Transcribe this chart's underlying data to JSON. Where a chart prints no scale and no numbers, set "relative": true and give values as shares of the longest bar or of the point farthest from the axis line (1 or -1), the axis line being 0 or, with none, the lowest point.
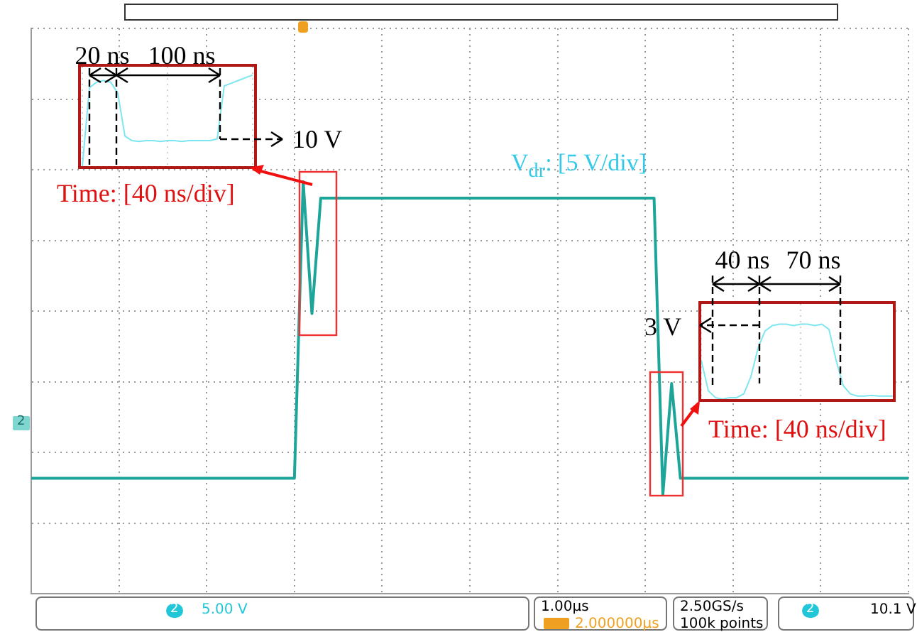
{
  "chart_data": [
    {
      "type": "line",
      "relative": true,
      "grid": true,
      "categories": [
        null,
        null,
        null,
        null,
        null,
        null,
        null,
        null,
        null,
        null,
        null,
        null,
        null,
        null,
        null,
        null,
        null,
        null,
        null,
        null,
        null,
        null,
        null,
        null,
        null,
        null,
        null,
        null,
        null,
        null,
        null,
        null,
        null,
        null,
        null,
        null,
        null,
        null,
        null,
        null,
        null,
        null,
        null,
        null,
        null,
        null,
        null,
        null,
        null,
        null,
        null,
        null,
        null,
        null,
        null,
        null,
        null,
        null,
        null,
        null,
        null,
        null,
        null,
        null,
        null,
        null,
        null,
        null,
        null,
        null,
        null,
        null,
        null,
        null,
        null,
        null,
        null,
        null,
        null,
        null,
        null,
        null,
        null,
        null,
        null,
        null,
        null,
        null,
        null,
        null,
        null,
        null,
        null,
        null,
        null,
        null,
        null,
        null,
        null,
        null,
        null
      ],
      "series": [
        {
          "color": "#1ea59a",
          "values": [
            0.28,
            0.28,
            0.28,
            0.28,
            0.28,
            0.28,
            0.28,
            0.28,
            0.28,
            0.28,
            0.28,
            0.28,
            0.28,
            0.28,
            0.28,
            0.28,
            0.28,
            0.28,
            0.28,
            0.28,
            0.28,
            0.28,
            0.28,
            0.28,
            0.28,
            0.28,
            0.28,
            0.28,
            0.28,
            0.28,
            0.28,
            1,
            0.68,
            0.96,
            0.96,
            0.96,
            0.96,
            0.96,
            0.96,
            0.96,
            0.96,
            0.96,
            0.96,
            0.96,
            0.96,
            0.96,
            0.96,
            0.96,
            0.96,
            0.96,
            0.96,
            0.96,
            0.96,
            0.96,
            0.96,
            0.96,
            0.96,
            0.96,
            0.96,
            0.96,
            0.96,
            0.96,
            0.96,
            0.96,
            0.96,
            0.96,
            0.96,
            0.96,
            0.96,
            0.96,
            0.96,
            0.96,
            0.24,
            0.51,
            0.28,
            0.28,
            0.28,
            0.28,
            0.28,
            0.28,
            0.28,
            0.28,
            0.28,
            0.28,
            0.28,
            0.28,
            0.28,
            0.28,
            0.28,
            0.28,
            0.28,
            0.28,
            0.28,
            0.28,
            0.28,
            0.28,
            0.28,
            0.28,
            0.28,
            0.28,
            0.28
          ]
        }
      ],
      "annotations": [
        "V$_{dr}$: [5 V/div]",
        "2",
        "2",
        "5.00 V",
        "1.00µs",
        "2.000000µs",
        "2.50GS/s",
        "100k points",
        "2",
        "10.1 V"
      ]
    },
    {
      "type": "line",
      "relative": true,
      "categories": [
        null,
        null,
        null,
        null,
        null,
        null,
        null,
        null,
        null,
        null,
        null,
        null,
        null,
        null,
        null,
        null,
        null,
        null,
        null,
        null,
        null,
        null,
        null,
        null,
        null
      ],
      "grid": "x",
      "series": [
        {
          "color": "#7ee6f0",
          "values": [
            0,
            0.86,
            0.92,
            0.94,
            0.92,
            0.8,
            0.33,
            0.28,
            0.27,
            0.28,
            0.28,
            0.27,
            0.28,
            0.28,
            0.27,
            0.28,
            0.28,
            0.28,
            0.28,
            0.3,
            0.88,
            0.91,
            0.94,
            0.97,
            1
          ]
        }
      ],
      "annotations": [
        "20 ns",
        "100 ns",
        "10 V",
        "Time: [40 ns/div]"
      ]
    },
    {
      "type": "line",
      "relative": true,
      "categories": [
        null,
        null,
        null,
        null,
        null,
        null,
        null,
        null,
        null,
        null,
        null,
        null,
        null,
        null,
        null,
        null,
        null,
        null,
        null,
        null,
        null,
        null,
        null,
        null,
        null,
        null,
        null,
        null
      ],
      "grid": "x",
      "series": [
        {
          "color": "#7ee6f0",
          "values": [
            0.52,
            0.11,
            0.02,
            0,
            0.02,
            0.02,
            0.07,
            0.3,
            0.68,
            0.91,
            0.98,
            1,
            1,
            0.98,
            1,
            1,
            0.98,
            1,
            0.93,
            0.52,
            0.18,
            0.07,
            0.04,
            0.04,
            0.05,
            0.04,
            0.04,
            0.04
          ]
        }
      ],
      "annotations": [
        "40 ns",
        "70 ns",
        "3 V",
        "Time: [40 ns/div]"
      ]
    }
  ]
}
